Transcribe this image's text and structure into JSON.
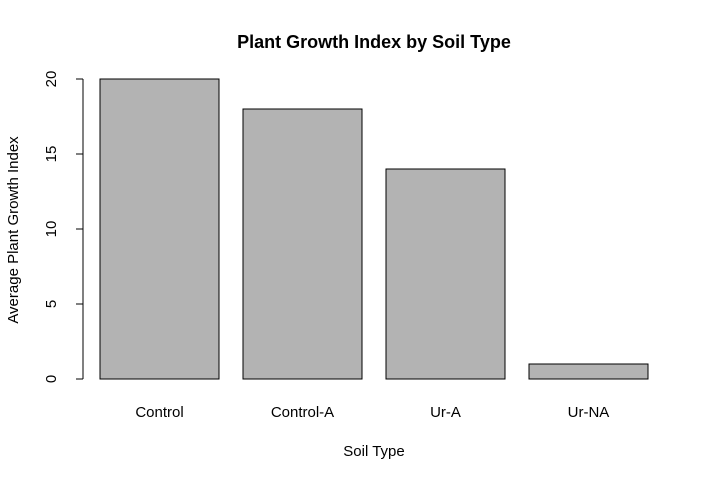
{
  "chart_data": {
    "type": "bar",
    "title": "Plant Growth Index by Soil Type",
    "xlabel": "Soil Type",
    "ylabel": "Average Plant Growth Index",
    "categories": [
      "Control",
      "Control-A",
      "Ur-A",
      "Ur-NA"
    ],
    "values": [
      20,
      18,
      14,
      1
    ],
    "ylim": [
      0,
      20
    ],
    "yticks": [
      "0",
      "5",
      "10",
      "15",
      "20"
    ],
    "grid": false,
    "legend": "none",
    "bar_color": "#b3b3b3",
    "bar_border_color": "#000000"
  }
}
